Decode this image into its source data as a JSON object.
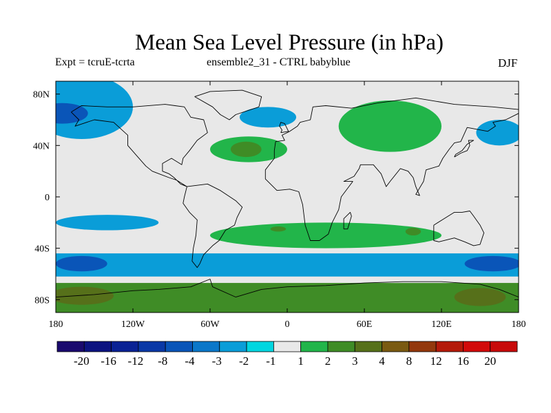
{
  "chart_data": {
    "type": "heatmap",
    "title": "Mean Sea Level Pressure (in hPa)",
    "subtitle_left": "Expt = tcruE-tcrta",
    "subtitle_center": "ensemble2_31 - CTRL babyblue",
    "subtitle_right": "DJF",
    "x_ticks": [
      "180",
      "120W",
      "60W",
      "0",
      "60E",
      "120E",
      "180"
    ],
    "x_tick_values": [
      -180,
      -120,
      -60,
      0,
      60,
      120,
      180
    ],
    "y_ticks": [
      "80N",
      "40N",
      "0",
      "40S",
      "80S"
    ],
    "y_tick_values": [
      80,
      40,
      0,
      -40,
      -80
    ],
    "xlim": [
      -180,
      180
    ],
    "ylim": [
      -90,
      90
    ],
    "colorbar_labels": [
      "-20",
      "-16",
      "-12",
      "-8",
      "-4",
      "-3",
      "-2",
      "-1",
      "1",
      "2",
      "3",
      "4",
      "8",
      "12",
      "16",
      "20"
    ],
    "colorbar_colors": [
      "#1a0a6e",
      "#0c1380",
      "#0a2294",
      "#0a38a6",
      "#0a55b8",
      "#0b77c9",
      "#0a9dd8",
      "#00d6e0",
      "#e8e8e8",
      "#22b54a",
      "#3f8c26",
      "#56701a",
      "#7a5a12",
      "#93380c",
      "#b41a0a",
      "#d20a0a"
    ],
    "regions": [
      {
        "name": "southern-polar-band",
        "level": "3",
        "shape": "band",
        "lat": [
          -90,
          -67
        ]
      },
      {
        "name": "southern-polar-peak-west",
        "level": "4",
        "lon": -160,
        "lat": -77,
        "rx": 25,
        "ry": 7
      },
      {
        "name": "southern-polar-peak-east",
        "level": "4",
        "lon": 150,
        "lat": -78,
        "rx": 20,
        "ry": 7
      },
      {
        "name": "southern-ocean-trough",
        "level": "-2",
        "shape": "band",
        "lat": [
          -62,
          -44
        ]
      },
      {
        "name": "southern-ocean-low-west",
        "level": "-4",
        "lon": -160,
        "lat": -52,
        "rx": 20,
        "ry": 6
      },
      {
        "name": "southern-ocean-low-east",
        "level": "-4",
        "lon": 160,
        "lat": -52,
        "rx": 22,
        "ry": 6
      },
      {
        "name": "south-pacific-low",
        "level": "-2",
        "lon": -140,
        "lat": -20,
        "rx": 40,
        "ry": 6
      },
      {
        "name": "south-atlantic-indian-high",
        "level": "2",
        "lon": 30,
        "lat": -30,
        "rx": 90,
        "ry": 10
      },
      {
        "name": "south-atlantic-high-core",
        "level": "3",
        "lon": -7,
        "lat": -25,
        "rx": 6,
        "ry": 2
      },
      {
        "name": "south-indian-high-core",
        "level": "3",
        "lon": 98,
        "lat": -27,
        "rx": 6,
        "ry": 3
      },
      {
        "name": "north-atlantic-high",
        "level": "2",
        "lon": -30,
        "lat": 37,
        "rx": 30,
        "ry": 10
      },
      {
        "name": "north-atlantic-high-core",
        "level": "3",
        "lon": -32,
        "lat": 37,
        "rx": 12,
        "ry": 6
      },
      {
        "name": "siberian-high",
        "level": "2",
        "lon": 80,
        "lat": 55,
        "rx": 40,
        "ry": 20
      },
      {
        "name": "north-pacific-arctic-low",
        "level": "-2",
        "lon": -160,
        "lat": 70,
        "rx": 40,
        "ry": 25
      },
      {
        "name": "north-pacific-low-core",
        "level": "-4",
        "lon": -175,
        "lat": 65,
        "rx": 20,
        "ry": 8
      },
      {
        "name": "north-atlantic-low",
        "level": "-2",
        "lon": -15,
        "lat": 62,
        "rx": 22,
        "ry": 8
      },
      {
        "name": "northwest-pacific-low",
        "level": "-2",
        "lon": 165,
        "lat": 50,
        "rx": 18,
        "ry": 10
      }
    ]
  }
}
